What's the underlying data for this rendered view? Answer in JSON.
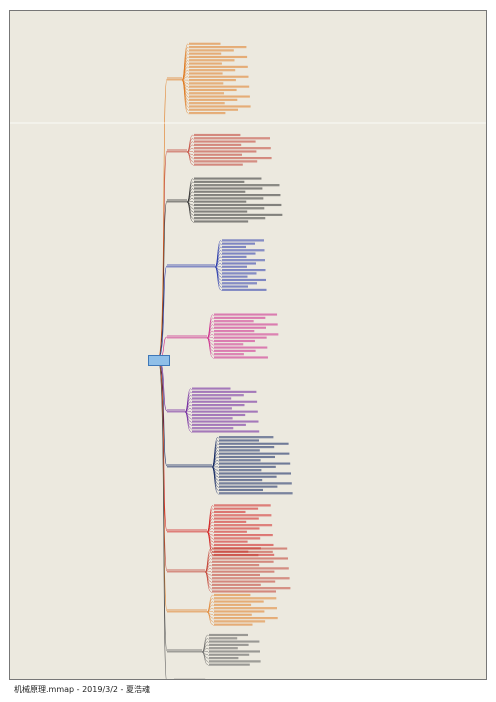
{
  "document": {
    "root_label": "",
    "footer_text": "机械原理.mmap - 2019/3/2 - 夏浩魂"
  },
  "colors": {
    "background": "#ece9df",
    "page_border": "#777777",
    "root_fill": "#8fbfe8",
    "root_border": "#3f78b8",
    "branches": [
      "#e07a1f",
      "#c0392b",
      "#2b2b2b",
      "#2233aa",
      "#cc2288",
      "#6a1b9a",
      "#0a1f5c",
      "#d01818",
      "#555555"
    ]
  }
}
